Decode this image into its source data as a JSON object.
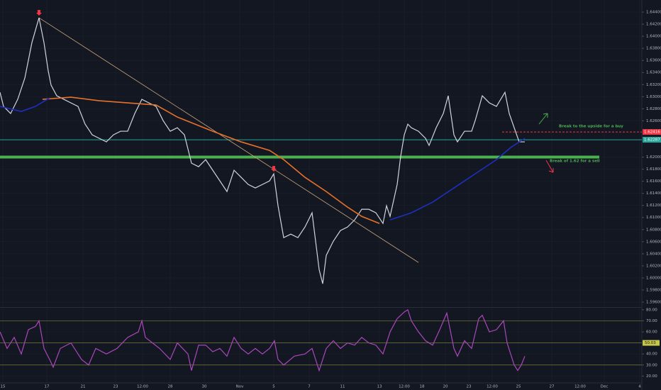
{
  "chart_data": [
    {
      "type": "line",
      "grid": true,
      "background": "#131722",
      "xlim": [
        0,
        226.25
      ],
      "ylim": [
        1.5953,
        1.646
      ],
      "xticks": [
        {
          "value": 1,
          "label": "15"
        },
        {
          "value": 16.5,
          "label": "17"
        },
        {
          "value": 29.25,
          "label": "21"
        },
        {
          "value": 40.75,
          "label": "23"
        },
        {
          "value": 50.25,
          "label": "12:00"
        },
        {
          "value": 60,
          "label": "28"
        },
        {
          "value": 72,
          "label": "30"
        },
        {
          "value": 84.5,
          "label": "Nov"
        },
        {
          "value": 96.5,
          "label": "5"
        },
        {
          "value": 109,
          "label": "7"
        },
        {
          "value": 120.75,
          "label": "11"
        },
        {
          "value": 133.75,
          "label": "13"
        },
        {
          "value": 142.5,
          "label": "12:00"
        },
        {
          "value": 148.75,
          "label": "18"
        },
        {
          "value": 157,
          "label": "20"
        },
        {
          "value": 165.25,
          "label": "23"
        },
        {
          "value": 173.5,
          "label": "12:00"
        },
        {
          "value": 182.75,
          "label": "25"
        },
        {
          "value": 194.5,
          "label": "27"
        },
        {
          "value": 204.5,
          "label": "12:00"
        },
        {
          "value": 213,
          "label": "Dec"
        },
        {
          "value": 225.5,
          "label": "4"
        }
      ],
      "yticks": [
        {
          "value": 1.644,
          "label": "1.64400"
        },
        {
          "value": 1.642,
          "label": "1.64200"
        },
        {
          "value": 1.64,
          "label": "1.64000"
        },
        {
          "value": 1.638,
          "label": "1.63800"
        },
        {
          "value": 1.636,
          "label": "1.63600"
        },
        {
          "value": 1.634,
          "label": "1.63400"
        },
        {
          "value": 1.632,
          "label": "1.63200"
        },
        {
          "value": 1.63,
          "label": "1.63000"
        },
        {
          "value": 1.628,
          "label": "1.62800"
        },
        {
          "value": 1.626,
          "label": "1.62600"
        },
        {
          "value": 1.62,
          "label": "1.62000"
        },
        {
          "value": 1.618,
          "label": "1.61800"
        },
        {
          "value": 1.616,
          "label": "1.61600"
        },
        {
          "value": 1.614,
          "label": "1.61400"
        },
        {
          "value": 1.612,
          "label": "1.61200"
        },
        {
          "value": 1.61,
          "label": "1.61000"
        },
        {
          "value": 1.608,
          "label": "1.60800"
        },
        {
          "value": 1.606,
          "label": "1.60600"
        },
        {
          "value": 1.604,
          "label": "1.60400"
        },
        {
          "value": 1.602,
          "label": "1.60200"
        },
        {
          "value": 1.6,
          "label": "1.60000"
        },
        {
          "value": 1.598,
          "label": "1.59800"
        },
        {
          "value": 1.596,
          "label": "1.59600"
        }
      ],
      "series": [
        {
          "color": "#d1d4dc",
          "x": [
            0,
            1.25,
            3.75,
            6.25,
            8.75,
            11.25,
            13.75,
            15.5,
            17,
            18,
            20,
            22.5,
            25,
            27.5,
            30,
            32.5,
            35,
            37.5,
            40,
            42.5,
            45,
            47.5,
            50,
            52.5,
            55,
            57.5,
            60,
            62.5,
            65,
            67.5,
            70,
            72.5,
            75,
            77.5,
            80,
            82.5,
            85,
            87.5,
            90,
            92.5,
            95,
            96.5,
            98,
            100,
            102.5,
            105,
            107.5,
            110,
            111.25,
            112.5,
            113.75,
            115,
            117.5,
            120,
            122.5,
            125,
            127.5,
            130,
            132.5,
            135,
            136.25,
            137.5,
            140,
            141.25,
            142.5,
            143.75,
            145,
            147.5,
            150,
            151.25,
            153.75,
            156.25,
            158,
            160,
            161.25,
            163.75,
            166.25,
            167.5,
            170,
            172.5,
            175,
            178,
            179.5,
            181.25,
            183,
            185
          ],
          "values": [
            1.63073,
            1.62839,
            1.62721,
            1.62956,
            1.63308,
            1.63895,
            1.64306,
            1.63895,
            1.63426,
            1.63191,
            1.63015,
            1.62956,
            1.62897,
            1.62839,
            1.62545,
            1.62369,
            1.6231,
            1.62252,
            1.62369,
            1.62428,
            1.62428,
            1.62721,
            1.62956,
            1.62897,
            1.62839,
            1.62604,
            1.62428,
            1.62486,
            1.62369,
            1.61899,
            1.61841,
            1.61958,
            1.61782,
            1.61606,
            1.6143,
            1.61782,
            1.61665,
            1.61547,
            1.61489,
            1.61547,
            1.61606,
            1.61723,
            1.61195,
            1.60667,
            1.60725,
            1.60667,
            1.60843,
            1.61078,
            1.60608,
            1.60138,
            1.59904,
            1.60373,
            1.60608,
            1.60784,
            1.60843,
            1.6096,
            1.61136,
            1.61136,
            1.61078,
            1.60902,
            1.61195,
            1.61019,
            1.61547,
            1.62017,
            1.62369,
            1.62545,
            1.62486,
            1.62428,
            1.6231,
            1.62193,
            1.62486,
            1.62721,
            1.63015,
            1.62369,
            1.62252,
            1.62428,
            1.62428,
            1.62604,
            1.63015,
            1.62897,
            1.62839,
            1.63073,
            1.62721,
            1.62486,
            1.62252,
            1.62252
          ]
        },
        {
          "color": "#e8712a",
          "x": [
            15,
            25,
            35,
            45,
            55,
            62.5,
            75,
            85,
            95,
            100,
            107.5,
            115,
            122.5,
            127.5,
            133.75
          ],
          "values": [
            1.62956,
            1.62991,
            1.62933,
            1.62897,
            1.62862,
            1.62663,
            1.62428,
            1.62252,
            1.62111,
            1.61958,
            1.61665,
            1.6143,
            1.61172,
            1.61019,
            1.60902
          ]
        },
        {
          "color": "#1e2fbf",
          "x": [
            0,
            7.5,
            12.5,
            17.5,
            100,
            137.5,
            145,
            152.5,
            160,
            167.5,
            175,
            180,
            185
          ],
          "values": [
            1.62839,
            1.62756,
            1.62839,
            1.62979,
            null,
            1.6096,
            1.61078,
            1.61254,
            1.61489,
            1.61723,
            1.61958,
            1.62158,
            1.6231
          ]
        }
      ],
      "trendline": {
        "color": "#c9a27a",
        "x": [
          13.75,
          147.5
        ],
        "values": [
          1.64306,
          1.60256
        ]
      },
      "markers": [
        {
          "color": "#f23645",
          "x": 13.75,
          "value": 1.64306
        },
        {
          "color": "#f23645",
          "x": 96.5,
          "value": 1.61723
        }
      ],
      "hlines": [
        {
          "value": 1.62,
          "color": "#4caf50",
          "width": 4
        },
        {
          "value": 1.62287,
          "color": "#26a69a",
          "width": 1,
          "label": "1.62287"
        },
        {
          "value": 1.62416,
          "color": "#f23645",
          "width": 1,
          "dashed": true,
          "label": "1.62416"
        }
      ],
      "annotations": [
        "Break to the upside for a buy",
        "Break of 1.62 for a sell"
      ]
    },
    {
      "type": "line",
      "grid": true,
      "xlim": [
        0,
        226.25
      ],
      "ylim": [
        13.8,
        81.2
      ],
      "yticks": [
        {
          "value": 80,
          "label": "80.00"
        },
        {
          "value": 70,
          "label": "70.00"
        },
        {
          "value": 60,
          "label": "60.00"
        },
        {
          "value": 40,
          "label": "40.00"
        },
        {
          "value": 30,
          "label": "30.00"
        },
        {
          "value": 20,
          "label": "20.00"
        }
      ],
      "levels": [
        70,
        50,
        30
      ],
      "level_color": "#787b36",
      "last_value": 50.03,
      "last_value_color": "#c6c64a",
      "series": [
        {
          "color": "#ab47bc",
          "x": [
            0,
            2.5,
            5,
            7.5,
            10,
            12.5,
            13.75,
            15.5,
            17.5,
            18.75,
            21.25,
            25,
            28.75,
            31.25,
            33.75,
            37.5,
            41.25,
            45,
            48.75,
            50,
            51.25,
            53.75,
            56.25,
            60,
            62.5,
            66.25,
            67.5,
            70,
            72.5,
            75,
            77.5,
            80,
            82.5,
            85,
            87.5,
            90,
            92.5,
            95,
            96.75,
            98,
            100,
            103.75,
            107.5,
            110,
            112.5,
            115,
            117.5,
            120,
            122.5,
            125,
            127.5,
            130,
            132.5,
            135,
            137.5,
            140,
            142.5,
            143.75,
            145,
            147.5,
            150,
            152.5,
            155,
            157.5,
            160,
            161.25,
            163.75,
            166.25,
            168.75,
            170,
            172.5,
            175,
            177.5,
            178.75,
            180,
            181.25,
            182.5,
            183.75,
            185
          ],
          "values": [
            60,
            45,
            55,
            40,
            62,
            65,
            70,
            45,
            35,
            28,
            45,
            50,
            35,
            30,
            45,
            40,
            45,
            55,
            60,
            70,
            55,
            50,
            45,
            35,
            50,
            40,
            25,
            48,
            48,
            42,
            45,
            38,
            55,
            45,
            40,
            45,
            40,
            45,
            52,
            35,
            30,
            38,
            40,
            45,
            25,
            45,
            52,
            45,
            50,
            48,
            55,
            50,
            48,
            40,
            60,
            72,
            78,
            80,
            70,
            60,
            52,
            48,
            62,
            77,
            45,
            38,
            52,
            45,
            72,
            75,
            60,
            62,
            70,
            50,
            40,
            30,
            25,
            30,
            38
          ]
        }
      ]
    }
  ]
}
